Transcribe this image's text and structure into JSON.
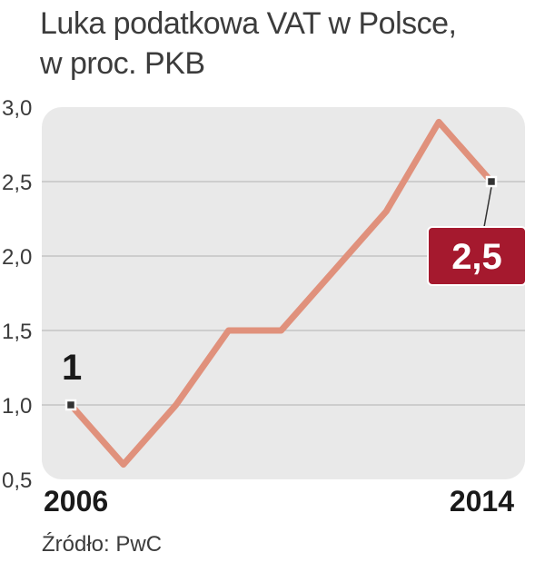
{
  "header": {
    "title_line1": "Luka podatkowa VAT w Polsce,",
    "title_line2": "w proc. PKB"
  },
  "source": "Źródło: PwC",
  "colors": {
    "plot_background": "#e9e9e9",
    "gridline": "#c4c4c4",
    "line": "#e0917c",
    "callout_fill": "#a5192e",
    "marker_fill": "#333333"
  },
  "chart_data": {
    "type": "line",
    "x": [
      2006,
      2007,
      2008,
      2009,
      2010,
      2011,
      2012,
      2013,
      2014
    ],
    "values": [
      1.0,
      0.6,
      1.0,
      1.5,
      1.5,
      1.9,
      2.3,
      2.9,
      2.5
    ],
    "ylim": [
      0.5,
      3.0
    ],
    "ytick_labels": [
      "3,0",
      "2,5",
      "2,0",
      "1,5",
      "1,0",
      "0,5"
    ],
    "ytick_values": [
      3.0,
      2.5,
      2.0,
      1.5,
      1.0,
      0.5
    ],
    "xtick_labels": [
      "2006",
      "2014"
    ],
    "grid": true,
    "annotations": {
      "start_label": "1",
      "end_label": "2,5"
    }
  }
}
